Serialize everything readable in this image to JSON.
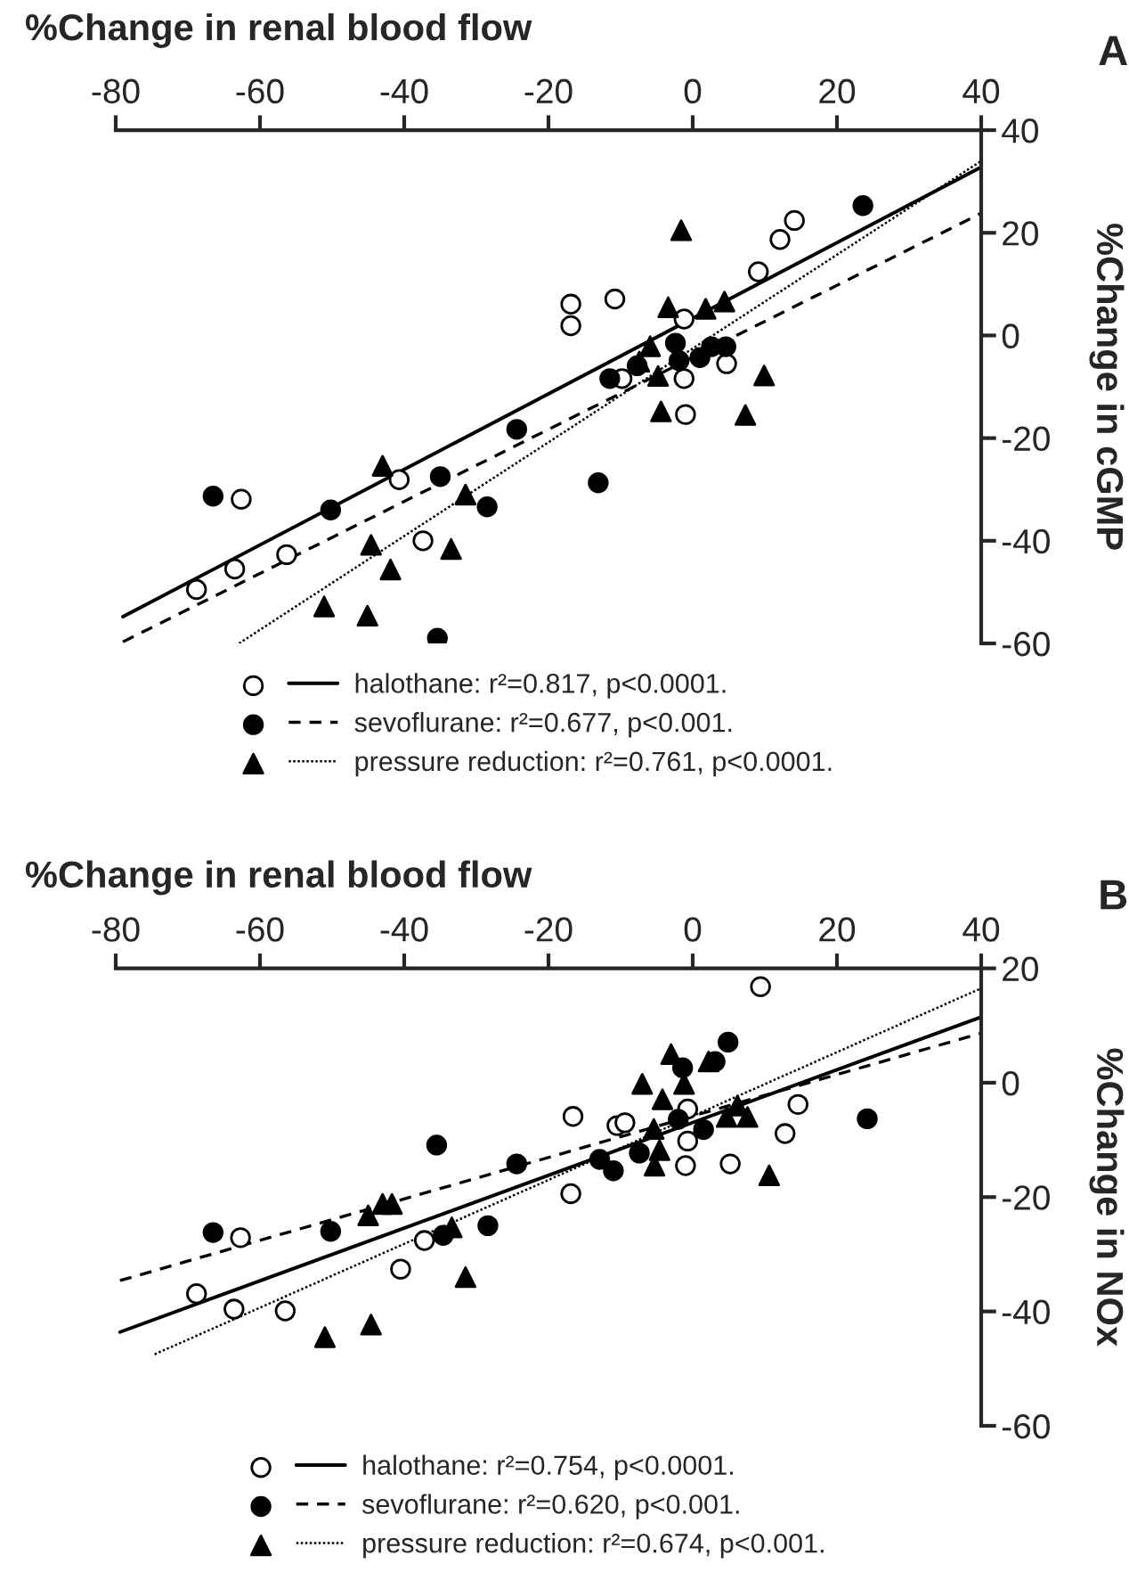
{
  "chart_data": [
    {
      "type": "scatter",
      "xlabel": "%Change in renal blood flow",
      "ylabel": "%Change in cGMP",
      "annotations": [
        "A"
      ],
      "xlim": [
        -80,
        40
      ],
      "ylim": [
        -60,
        40
      ],
      "xticks": [
        -80,
        -60,
        -40,
        -20,
        0,
        20,
        40
      ],
      "yticks": [
        -60,
        -40,
        -20,
        0,
        20,
        40
      ],
      "legend": "bottom",
      "series": [
        {
          "name": "halothane: r²=0.817, p<0.0001.",
          "color": "#ffffff",
          "marker": "circle",
          "x": [
            -68.8,
            -63.5,
            -62.6,
            -56.3,
            -40.7,
            -37.4,
            -16.9,
            -16.9,
            -10.8,
            -9.8,
            -1.2,
            -1.2,
            -1.0,
            4.7,
            9.1,
            12.1,
            14.1
          ],
          "values": [
            -49.5,
            -45.5,
            -31.9,
            -42.7,
            -28.1,
            -40,
            6.1,
            1.9,
            7.1,
            -8.4,
            3.2,
            -8.4,
            -15.4,
            -5.5,
            12.4,
            18.7,
            22.4
          ]
        },
        {
          "name": "sevoflurane: r²=0.677, p<0.001.",
          "color": "#000000",
          "marker": "circle",
          "x": [
            -66.5,
            -50.2,
            -35,
            -35.4,
            -28.5,
            -24.4,
            -13.1,
            -11.5,
            -7.7,
            -2.4,
            -1.9,
            1,
            2.6,
            4.6,
            23.6
          ],
          "values": [
            -31.3,
            -34,
            -27.5,
            -59,
            -33.4,
            -18.3,
            -28.7,
            -8.4,
            -5.9,
            -1.5,
            -4.9,
            -4.3,
            -2.2,
            -2.2,
            25.3
          ]
        },
        {
          "name": "pressure reduction: r²=0.761, p<0.0001.",
          "color": "#000000",
          "marker": "triangle",
          "x": [
            -43,
            -31.5,
            -44.6,
            -41.9,
            -33.5,
            -51.1,
            -45.1,
            -1.6,
            -3.4,
            1.8,
            4.4,
            -5.9,
            -7.4,
            -4.8,
            -4.4,
            9.9,
            7.3
          ],
          "values": [
            -25.4,
            -31,
            -40.8,
            -45.6,
            -41.6,
            -52.8,
            -54.6,
            20.5,
            5.5,
            5.2,
            6.6,
            -2.1,
            -5.1,
            -7.9,
            -14.8,
            -7.8,
            -15.5
          ]
        },
        {
          "type": "line",
          "color": "#000000",
          "line_style": "solid",
          "x": [
            -79,
            40
          ],
          "values": [
            -54.8,
            32.8
          ]
        },
        {
          "type": "line",
          "color": "#000000",
          "line_style": "dashed",
          "x": [
            -79,
            40
          ],
          "values": [
            -59.7,
            23.8
          ]
        },
        {
          "type": "line",
          "color": "#000000",
          "line_style": "dotted",
          "x": [
            -62.9,
            40
          ],
          "values": [
            -60,
            34
          ]
        }
      ]
    },
    {
      "type": "scatter",
      "xlabel": "%Change in renal blood flow",
      "ylabel": "%Change in NOx",
      "annotations": [
        "B"
      ],
      "xlim": [
        -80,
        40
      ],
      "ylim": [
        -60,
        20
      ],
      "xticks": [
        -80,
        -60,
        -40,
        -20,
        0,
        20,
        40
      ],
      "yticks": [
        -60,
        -40,
        -20,
        0,
        20
      ],
      "legend": "bottom",
      "series": [
        {
          "name": "halothane: r²=0.754, p<0.0001.",
          "color": "#ffffff",
          "marker": "circle",
          "x": [
            -68.8,
            -63.6,
            -62.7,
            -56.5,
            -40.5,
            -37.2,
            -16.9,
            -16.6,
            -10.5,
            -9.4,
            -0.7,
            -0.7,
            -1,
            5.2,
            9.4,
            12.8,
            14.6
          ],
          "values": [
            -36.9,
            -39.6,
            -27.1,
            -39.9,
            -32.6,
            -27.6,
            -19.4,
            -5.9,
            -7.5,
            -7,
            -4.6,
            -10.2,
            -14.5,
            -14.2,
            16.8,
            -8.9,
            -3.8
          ]
        },
        {
          "name": "sevoflurane: r²=0.620, p<0.001.",
          "color": "#000000",
          "marker": "circle",
          "x": [
            -66.5,
            -50.2,
            -35.5,
            -34.6,
            -28.4,
            -24.4,
            -12.9,
            -11,
            -7.4,
            -2,
            -1.4,
            1.5,
            3.1,
            4.9,
            24.2
          ],
          "values": [
            -26.2,
            -26,
            -10.9,
            -26.7,
            -25,
            -14.2,
            -13.4,
            -15.4,
            -12.3,
            -6.4,
            2.6,
            -8.2,
            3.7,
            7.1,
            -6.3
          ]
        },
        {
          "name": "pressure reduction: r²=0.674, p<0.001.",
          "color": "#000000",
          "marker": "triangle",
          "x": [
            -51,
            -44.6,
            -45,
            -43,
            -41.7,
            -33.4,
            -31.5,
            -7,
            -3,
            -1.2,
            -4.2,
            -5.4,
            -4.6,
            -5.3,
            2.2,
            4.7,
            6.2,
            7.6,
            10.6
          ],
          "values": [
            -44.5,
            -42.3,
            -23.2,
            -21.2,
            -21.2,
            -25.3,
            -34,
            -0.2,
            5,
            -0.2,
            -2.9,
            -8.1,
            -11.8,
            -14.5,
            3.7,
            -6,
            -4,
            -6,
            -16.2
          ]
        },
        {
          "type": "line",
          "color": "#000000",
          "line_style": "solid",
          "x": [
            -79.4,
            39.8
          ],
          "values": [
            -43.6,
            11.4
          ]
        },
        {
          "type": "line",
          "color": "#000000",
          "line_style": "dashed",
          "x": [
            -79.4,
            39.8
          ],
          "values": [
            -34.6,
            8.6
          ]
        },
        {
          "type": "line",
          "color": "#000000",
          "line_style": "dotted",
          "x": [
            -74.6,
            39.8
          ],
          "values": [
            -47.5,
            16.4
          ]
        }
      ]
    }
  ]
}
